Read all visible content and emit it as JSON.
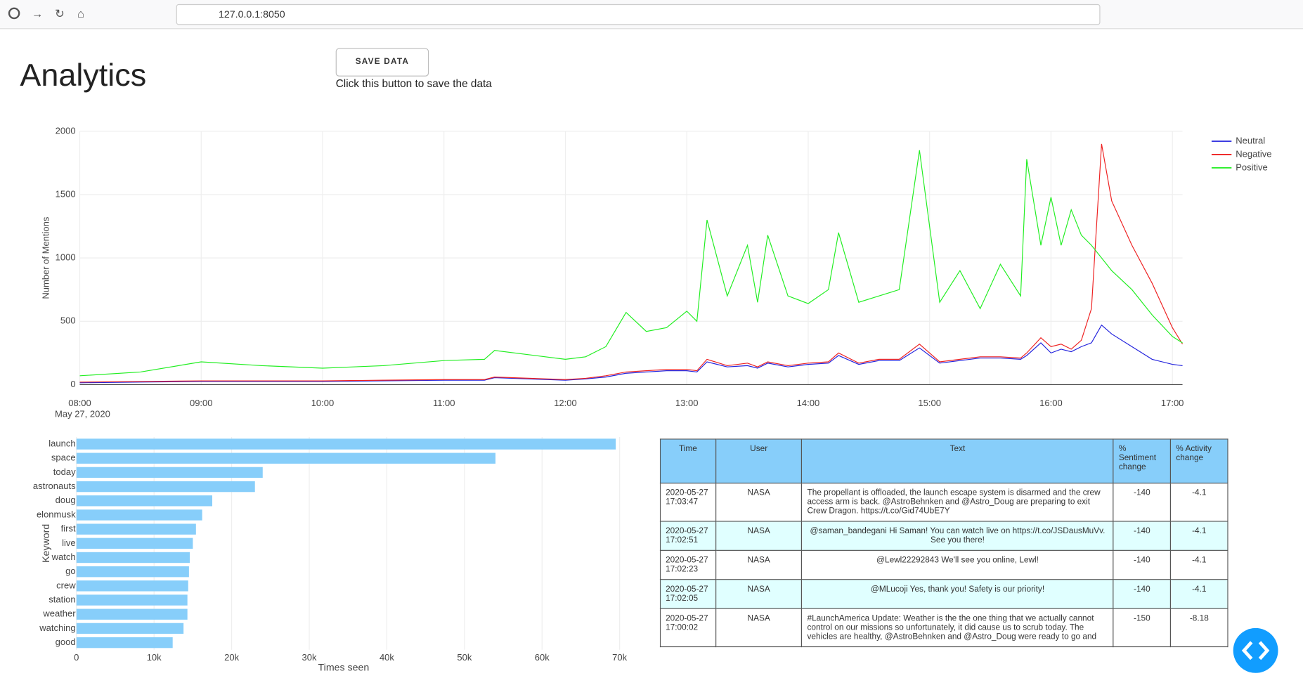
{
  "browser": {
    "url": "127.0.0.1:8050"
  },
  "header": {
    "title": "Analytics",
    "button": "SAVE DATA",
    "caption": "Click this button to save the data"
  },
  "line_chart": {
    "type": "line",
    "ylabel": "Number of Mentions",
    "x_date": "May 27, 2020",
    "x": [
      "08:00",
      "08:30",
      "09:00",
      "09:30",
      "10:00",
      "10:30",
      "11:00",
      "11:20",
      "11:25",
      "12:00",
      "12:10",
      "12:20",
      "12:30",
      "12:40",
      "12:50",
      "13:00",
      "13:05",
      "13:10",
      "13:20",
      "13:30",
      "13:35",
      "13:40",
      "13:50",
      "14:00",
      "14:10",
      "14:15",
      "14:25",
      "14:35",
      "14:45",
      "14:55",
      "15:05",
      "15:15",
      "15:25",
      "15:35",
      "15:45",
      "15:48",
      "15:55",
      "16:00",
      "16:05",
      "16:10",
      "16:15",
      "16:20",
      "16:25",
      "16:30",
      "16:40",
      "16:50",
      "17:00",
      "17:05"
    ],
    "xlim": [
      "08:00",
      "17:05"
    ],
    "xticks": [
      "08:00",
      "09:00",
      "10:00",
      "11:00",
      "12:00",
      "13:00",
      "14:00",
      "15:00",
      "16:00",
      "17:00"
    ],
    "ylim": [
      0,
      2000
    ],
    "yticks": [
      0,
      500,
      1000,
      1500,
      2000
    ],
    "grid": true,
    "legend": "right",
    "series": [
      {
        "name": "Neutral",
        "color": "#2222dd",
        "values": [
          15,
          20,
          25,
          25,
          25,
          30,
          35,
          35,
          55,
          35,
          45,
          60,
          90,
          100,
          110,
          110,
          100,
          180,
          140,
          150,
          130,
          170,
          140,
          160,
          170,
          230,
          160,
          190,
          190,
          290,
          170,
          190,
          210,
          210,
          200,
          230,
          330,
          250,
          280,
          260,
          300,
          330,
          470,
          400,
          300,
          200,
          160,
          150
        ]
      },
      {
        "name": "Negative",
        "color": "#ee2222",
        "values": [
          20,
          25,
          30,
          30,
          30,
          35,
          40,
          40,
          60,
          40,
          50,
          70,
          100,
          110,
          120,
          120,
          110,
          200,
          150,
          170,
          140,
          180,
          150,
          170,
          180,
          250,
          170,
          200,
          200,
          320,
          180,
          200,
          220,
          220,
          210,
          250,
          370,
          300,
          320,
          280,
          350,
          600,
          1900,
          1450,
          1100,
          800,
          450,
          320
        ]
      },
      {
        "name": "Positive",
        "color": "#22ee22",
        "values": [
          70,
          100,
          180,
          150,
          130,
          150,
          190,
          200,
          270,
          200,
          220,
          300,
          570,
          420,
          450,
          580,
          500,
          1300,
          700,
          1100,
          650,
          1180,
          700,
          640,
          750,
          1200,
          650,
          700,
          750,
          1850,
          650,
          900,
          600,
          950,
          700,
          1780,
          1100,
          1480,
          1100,
          1380,
          1180,
          1100,
          1000,
          900,
          750,
          550,
          380,
          330
        ]
      }
    ]
  },
  "bar_chart": {
    "type": "bar",
    "orientation": "horizontal",
    "xlabel": "Times seen",
    "ylabel": "Keyword",
    "color": "#87cefa",
    "categories": [
      "launch",
      "space",
      "today",
      "astronauts",
      "doug",
      "elonmusk",
      "first",
      "live",
      "watch",
      "go",
      "crew",
      "station",
      "weather",
      "watching",
      "good"
    ],
    "values": [
      69500,
      54000,
      24000,
      23000,
      17500,
      16200,
      15400,
      15000,
      14600,
      14500,
      14400,
      14300,
      14300,
      13800,
      12400
    ],
    "xlim": [
      0,
      71000
    ],
    "xticks": [
      0,
      {
        "value": 10000,
        "label": "10k"
      },
      {
        "value": 20000,
        "label": "20k"
      },
      {
        "value": 30000,
        "label": "30k"
      },
      {
        "value": 40000,
        "label": "40k"
      },
      {
        "value": 50000,
        "label": "50k"
      },
      {
        "value": 60000,
        "label": "60k"
      },
      {
        "value": 70000,
        "label": "70k"
      }
    ],
    "grid": true
  },
  "table": {
    "header": [
      "Time",
      "User",
      "Text",
      "% Sentiment change",
      "% Activity change"
    ],
    "rows": [
      [
        "2020-05-27 17:03:47",
        "NASA",
        "The propellant is offloaded, the launch escape system is disarmed and the crew access arm is back. @AstroBehnken and @Astro_Doug are preparing to exit Crew Dragon. https://t.co/Gid74UbE7Y",
        "-140",
        "-4.1"
      ],
      [
        "2020-05-27 17:02:51",
        "NASA",
        "@saman_bandegani Hi Saman! You can watch live on https://t.co/JSDausMuVv. See you there!",
        "-140",
        "-4.1"
      ],
      [
        "2020-05-27 17:02:23",
        "NASA",
        "@Lewl22292843 We'll see you online, Lewl!",
        "-140",
        "-4.1"
      ],
      [
        "2020-05-27 17:02:05",
        "NASA",
        "@MLucoji Yes, thank you! Safety is our priority!",
        "-140",
        "-4.1"
      ],
      [
        "2020-05-27 17:00:02",
        "NASA",
        "#LaunchAmerica Update: Weather is the the one thing that we actually cannot control on our missions so unfortunately, it did cause us to scrub today. The vehicles are healthy, @AstroBehnken and @Astro_Doug were ready to go and",
        "-150",
        "-8.18"
      ]
    ]
  }
}
